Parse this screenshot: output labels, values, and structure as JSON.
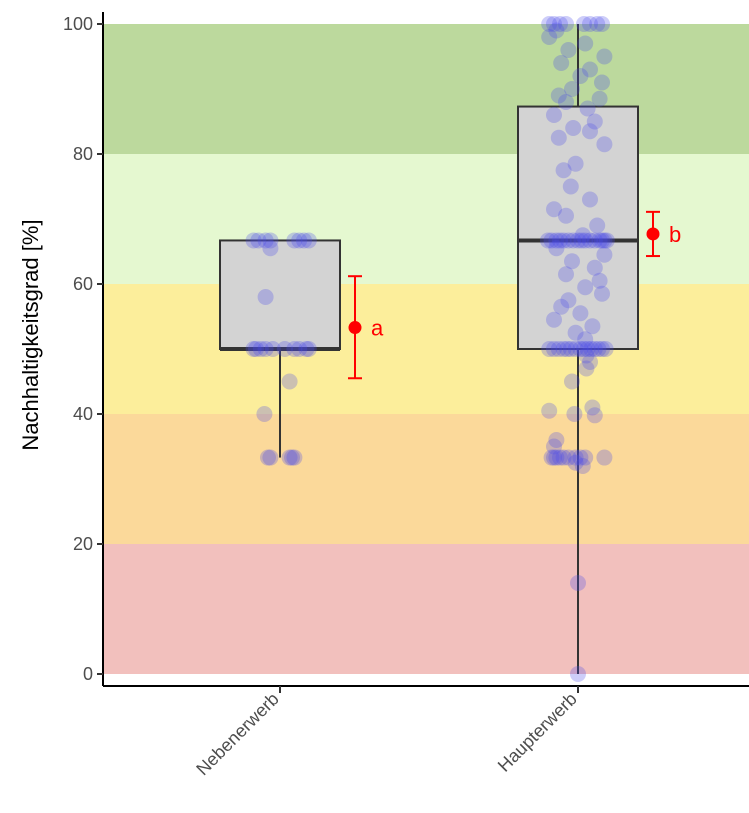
{
  "chart_data": {
    "type": "boxplot",
    "ylabel": "Nachhaltigkeitsgrad [%]",
    "xlabel": "",
    "ylim": [
      0,
      100
    ],
    "y_ticks": [
      "0",
      "20",
      "40",
      "60",
      "80",
      "100"
    ],
    "categories": [
      "Nebenerwerb",
      "Haupterwerb"
    ],
    "bands": [
      {
        "from": 0,
        "to": 20,
        "color": "#f2c0bd"
      },
      {
        "from": 20,
        "to": 40,
        "color": "#fbd99a"
      },
      {
        "from": 40,
        "to": 60,
        "color": "#fcee9b"
      },
      {
        "from": 60,
        "to": 80,
        "color": "#e5f8d0"
      },
      {
        "from": 80,
        "to": 100,
        "color": "#bcd99d"
      }
    ],
    "boxes": [
      {
        "category": "Nebenerwerb",
        "min": 33.3,
        "q1": 50,
        "median": 50,
        "q3": 66.7,
        "max": 66.7
      },
      {
        "category": "Haupterwerb",
        "min": 0,
        "q1": 50,
        "median": 66.7,
        "q3": 87.3,
        "max": 100
      }
    ],
    "means": [
      {
        "category": "Nebenerwerb",
        "mean": 53.3,
        "lower": 45.5,
        "upper": 61.2,
        "label": "a"
      },
      {
        "category": "Haupterwerb",
        "mean": 67.7,
        "lower": 64.3,
        "upper": 71.1,
        "label": "b"
      }
    ],
    "points": [
      {
        "category": "Nebenerwerb",
        "values": [
          66.7,
          66.7,
          66.7,
          66.7,
          66.7,
          66.7,
          66.7,
          66.7,
          65.5,
          58,
          50,
          50,
          50,
          50,
          50,
          50,
          50,
          50,
          50,
          50,
          45,
          40,
          33.3,
          33.3,
          33.3,
          33.3,
          33.3
        ],
        "offsets": [
          -0.22,
          -0.18,
          -0.12,
          -0.08,
          0.12,
          0.16,
          0.2,
          0.24,
          -0.08,
          -0.12,
          -0.22,
          -0.2,
          -0.16,
          -0.12,
          -0.06,
          0.04,
          0.12,
          0.16,
          0.22,
          0.24,
          0.08,
          -0.13,
          -0.1,
          -0.08,
          0.08,
          0.1,
          0.12
        ]
      },
      {
        "category": "Haupterwerb",
        "values": [
          100,
          100,
          100,
          100,
          100,
          100,
          100,
          100,
          99,
          98,
          97,
          96,
          95,
          94,
          93,
          92,
          91,
          90,
          89,
          88.5,
          88,
          87,
          86,
          85,
          84,
          83.5,
          82.5,
          81.5,
          78.5,
          77.5,
          75,
          73,
          71.5,
          70.5,
          69,
          67.5,
          66.7,
          66.7,
          66.7,
          66.7,
          66.7,
          66.7,
          66.7,
          66.7,
          66.7,
          66.7,
          66.7,
          66.7,
          66.7,
          66.7,
          66.7,
          66.7,
          65.5,
          64.5,
          63.5,
          62.5,
          61.5,
          60.5,
          59.5,
          58.5,
          57.5,
          56.5,
          55.5,
          54.5,
          53.5,
          52.5,
          51.5,
          50,
          50,
          50,
          50,
          50,
          50,
          50,
          50,
          50,
          50,
          50,
          50,
          50,
          50,
          50,
          49,
          48,
          47,
          45,
          41,
          40.5,
          40,
          39.8,
          36,
          35,
          33.3,
          33.3,
          33.3,
          33.3,
          33.3,
          33.3,
          33.3,
          33.3,
          33.3,
          33.3,
          32.5,
          32,
          14,
          0
        ],
        "offsets": [
          -0.24,
          -0.2,
          -0.15,
          -0.1,
          0.05,
          0.1,
          0.16,
          0.2,
          -0.18,
          -0.24,
          0.06,
          -0.08,
          0.22,
          -0.14,
          0.1,
          0.02,
          0.2,
          -0.05,
          -0.16,
          0.18,
          -0.1,
          0.08,
          -0.2,
          0.14,
          -0.04,
          0.1,
          -0.16,
          0.22,
          -0.02,
          -0.12,
          -0.06,
          0.1,
          -0.2,
          -0.1,
          0.16,
          0.04,
          -0.25,
          -0.22,
          -0.18,
          -0.15,
          -0.12,
          -0.08,
          -0.04,
          0,
          0.03,
          0.06,
          0.1,
          0.14,
          0.18,
          0.2,
          0.22,
          0.24,
          -0.18,
          0.22,
          -0.05,
          0.14,
          -0.1,
          0.18,
          0.06,
          0.2,
          -0.08,
          -0.14,
          0.02,
          -0.2,
          0.12,
          -0.02,
          0.06,
          -0.24,
          -0.2,
          -0.16,
          -0.12,
          -0.09,
          -0.06,
          -0.02,
          0.02,
          0.05,
          0.08,
          0.11,
          0.14,
          0.17,
          0.2,
          0.23,
          0.07,
          0.1,
          0.07,
          -0.05,
          0.12,
          -0.24,
          -0.03,
          0.14,
          -0.18,
          -0.2,
          -0.22,
          -0.2,
          -0.18,
          -0.15,
          -0.12,
          -0.08,
          -0.02,
          0.02,
          0.06,
          0.22,
          -0.02,
          0.04,
          0.0,
          0.0
        ]
      }
    ],
    "colors": {
      "box_fill": "#d3d3d3",
      "box_stroke": "#333333",
      "points": "#4a4ae8",
      "mean": "#ff0000",
      "axis": "#000000"
    }
  }
}
